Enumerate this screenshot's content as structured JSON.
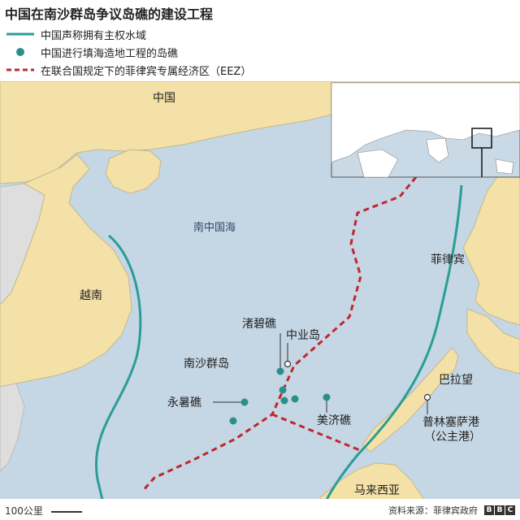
{
  "title": "中国在南沙群岛争议岛礁的建设工程",
  "legend": {
    "claim_line": "中国声称拥有主权水域",
    "reclaimed": "中国进行填海造地工程的岛礁",
    "eez": "在联合国规定下的菲律宾专属经济区（EEZ）"
  },
  "labels": {
    "china": "中国",
    "south_china_sea": "南中国海",
    "vietnam": "越南",
    "spratly": "南沙群岛",
    "subi": "渚碧礁",
    "thitu": "中业岛",
    "fiery_cross": "永暑礁",
    "mischief": "美济礁",
    "philippines": "菲律宾",
    "palawan": "巴拉望",
    "puerto_princesa_1": "普林塞萨港",
    "puerto_princesa_2": "（公主港）",
    "malaysia": "马来西亚"
  },
  "scale": "100公里",
  "source": "资料来源：菲律宾政府",
  "bbc_letters": [
    "B",
    "B",
    "C"
  ],
  "colors": {
    "land": "#f4e1a8",
    "sea": "#c5d6e4",
    "neighbor_land": "#dedede",
    "claim_line": "#2a9d96",
    "eez_line": "#c0272d",
    "reef_dot": "#2a8f8a"
  }
}
